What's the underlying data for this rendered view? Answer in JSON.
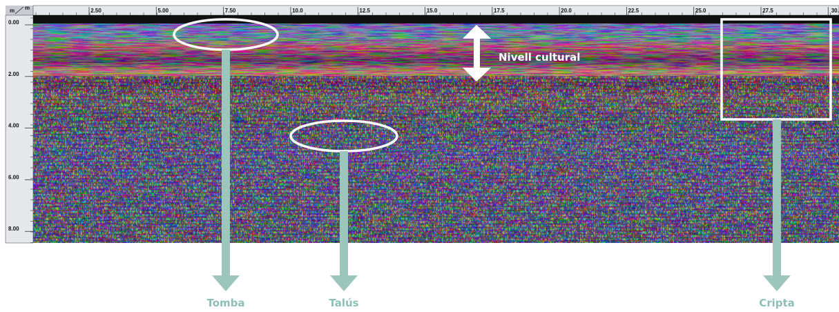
{
  "axis": {
    "corner": [
      "m",
      "m"
    ],
    "x_ticks": [
      "2.50",
      "5.00",
      "7.50",
      "10.0",
      "12.5",
      "15.0",
      "17.5",
      "20.0",
      "22.5",
      "25.0",
      "27.5",
      "30."
    ],
    "y_ticks": [
      "0.00",
      "2.00",
      "4.00",
      "6.00",
      "8.00"
    ]
  },
  "annotations": {
    "layer": "Nivell cultural",
    "labels": [
      "Tomba",
      "Talús",
      "Cripta"
    ]
  }
}
